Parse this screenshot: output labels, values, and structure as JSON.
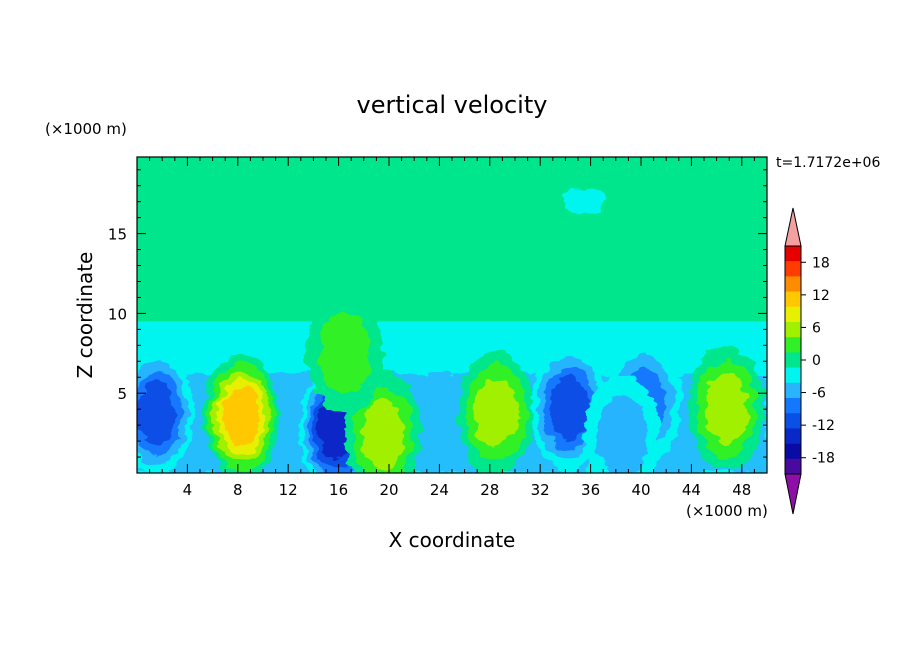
{
  "chart_data": {
    "type": "heatmap",
    "title": "vertical velocity",
    "xlabel": "X coordinate",
    "ylabel": "Z coordinate",
    "x_unit": "(×1000 m)",
    "y_unit": "(×1000 m)",
    "time_label": "t=1.7172e+06",
    "xlim": [
      0,
      50
    ],
    "ylim": [
      0,
      19.8
    ],
    "x_ticks": [
      4,
      8,
      12,
      16,
      20,
      24,
      28,
      32,
      36,
      40,
      44,
      48
    ],
    "y_ticks": [
      5,
      10,
      15
    ],
    "x_tick_labels": [
      "4",
      "8",
      "12",
      "16",
      "20",
      "24",
      "28",
      "32",
      "36",
      "40",
      "44",
      "48"
    ],
    "y_tick_labels": [
      "5",
      "10",
      "15"
    ],
    "colorbar": {
      "levels": [
        -21,
        -18,
        -15,
        -12,
        -9,
        -6,
        -3,
        0,
        3,
        6,
        9,
        12,
        15,
        18,
        21
      ],
      "labels": [
        "18",
        "12",
        "6",
        "0",
        "-6",
        "-12",
        "-18"
      ],
      "label_values": [
        18,
        12,
        6,
        0,
        -6,
        -12,
        -18
      ],
      "over_color": "#f4a0a0",
      "under_color": "#8e0fa8",
      "colors": [
        "#4a0aa0",
        "#0a0aa5",
        "#0a28c8",
        "#0a50e6",
        "#1478ff",
        "#28b4ff",
        "#00f5f0",
        "#00e68c",
        "#32f028",
        "#a0f000",
        "#e6f000",
        "#ffc800",
        "#ff8c00",
        "#ff3c00",
        "#e60000"
      ]
    },
    "features": [
      {
        "x": 1.5,
        "z": 3.5,
        "value": -12
      },
      {
        "x": 8.3,
        "z": 3.3,
        "value": 15
      },
      {
        "x": 15.8,
        "z": 2.5,
        "value": -15
      },
      {
        "x": 19.5,
        "z": 2.2,
        "value": 9
      },
      {
        "x": 16.5,
        "z": 7.3,
        "value": 6
      },
      {
        "x": 28.5,
        "z": 3.5,
        "value": 9
      },
      {
        "x": 34.3,
        "z": 3.8,
        "value": -12
      },
      {
        "x": 40.2,
        "z": 4.2,
        "value": -9
      },
      {
        "x": 38.5,
        "z": 2.0,
        "value": -6
      },
      {
        "x": 46.8,
        "z": 3.8,
        "value": 9
      },
      {
        "x": 35.5,
        "z": 17.0,
        "value": -3
      },
      {
        "x": 47.3,
        "z": 17.4,
        "value": 3
      },
      {
        "x": 25.0,
        "z": 12.5,
        "value": 2
      },
      {
        "x": 10.0,
        "z": 17.0,
        "value": 1
      }
    ]
  }
}
